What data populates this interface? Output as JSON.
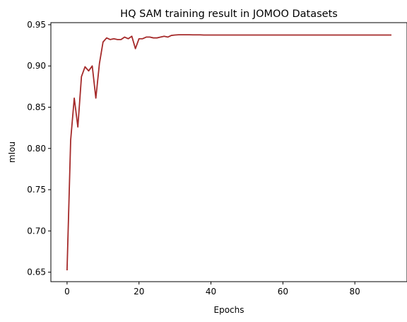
{
  "chart_data": {
    "type": "line",
    "title": "HQ SAM training result in JOMOO Datasets",
    "xlabel": "Epochs",
    "ylabel": "mIou",
    "xlim": [
      -4.5,
      94.5
    ],
    "ylim": [
      0.6385,
      0.9525
    ],
    "xticks": [
      0,
      20,
      40,
      60,
      80
    ],
    "yticks": [
      0.65,
      0.7,
      0.75,
      0.8,
      0.85,
      0.9,
      0.95
    ],
    "xtick_labels": [
      "0",
      "20",
      "40",
      "60",
      "80"
    ],
    "ytick_labels": [
      "0.65",
      "0.70",
      "0.75",
      "0.80",
      "0.85",
      "0.90",
      "0.95"
    ],
    "grid": false,
    "series": [
      {
        "color": "#a52a2a",
        "x": [
          0,
          1,
          2,
          3,
          4,
          5,
          6,
          7,
          8,
          9,
          10,
          11,
          12,
          13,
          14,
          15,
          16,
          17,
          18,
          19,
          20,
          21,
          22,
          23,
          24,
          25,
          26,
          27,
          28,
          29,
          30,
          31,
          32,
          33,
          34,
          35,
          36,
          37,
          38,
          39,
          40,
          41,
          42,
          43,
          44,
          45,
          46,
          47,
          48,
          49,
          50,
          51,
          52,
          53,
          54,
          55,
          56,
          57,
          58,
          59,
          60,
          61,
          62,
          63,
          64,
          65,
          66,
          67,
          68,
          69,
          70,
          71,
          72,
          73,
          74,
          75,
          76,
          77,
          78,
          79,
          80,
          81,
          82,
          83,
          84,
          85,
          86,
          87,
          88,
          89,
          90
        ],
        "y": [
          0.653,
          0.81,
          0.861,
          0.826,
          0.887,
          0.899,
          0.894,
          0.9,
          0.861,
          0.903,
          0.929,
          0.934,
          0.932,
          0.933,
          0.932,
          0.932,
          0.935,
          0.933,
          0.936,
          0.921,
          0.933,
          0.933,
          0.935,
          0.935,
          0.934,
          0.934,
          0.935,
          0.936,
          0.935,
          0.937,
          0.9375,
          0.9378,
          0.9378,
          0.9378,
          0.9378,
          0.9377,
          0.9377,
          0.9377,
          0.9375,
          0.9375,
          0.9375,
          0.9375,
          0.9375,
          0.9375,
          0.9375,
          0.9375,
          0.9375,
          0.9375,
          0.9375,
          0.9375,
          0.9375,
          0.9375,
          0.9375,
          0.9375,
          0.9375,
          0.9375,
          0.9375,
          0.9375,
          0.9375,
          0.9375,
          0.9375,
          0.9375,
          0.9375,
          0.9375,
          0.9375,
          0.9375,
          0.9375,
          0.9375,
          0.9375,
          0.9375,
          0.9375,
          0.9375,
          0.9375,
          0.9375,
          0.9375,
          0.9375,
          0.9375,
          0.9375,
          0.9375,
          0.9375,
          0.9375,
          0.9375,
          0.9375,
          0.9375,
          0.9375,
          0.9375,
          0.9375,
          0.9375,
          0.9375,
          0.9375,
          0.9375
        ]
      }
    ]
  }
}
